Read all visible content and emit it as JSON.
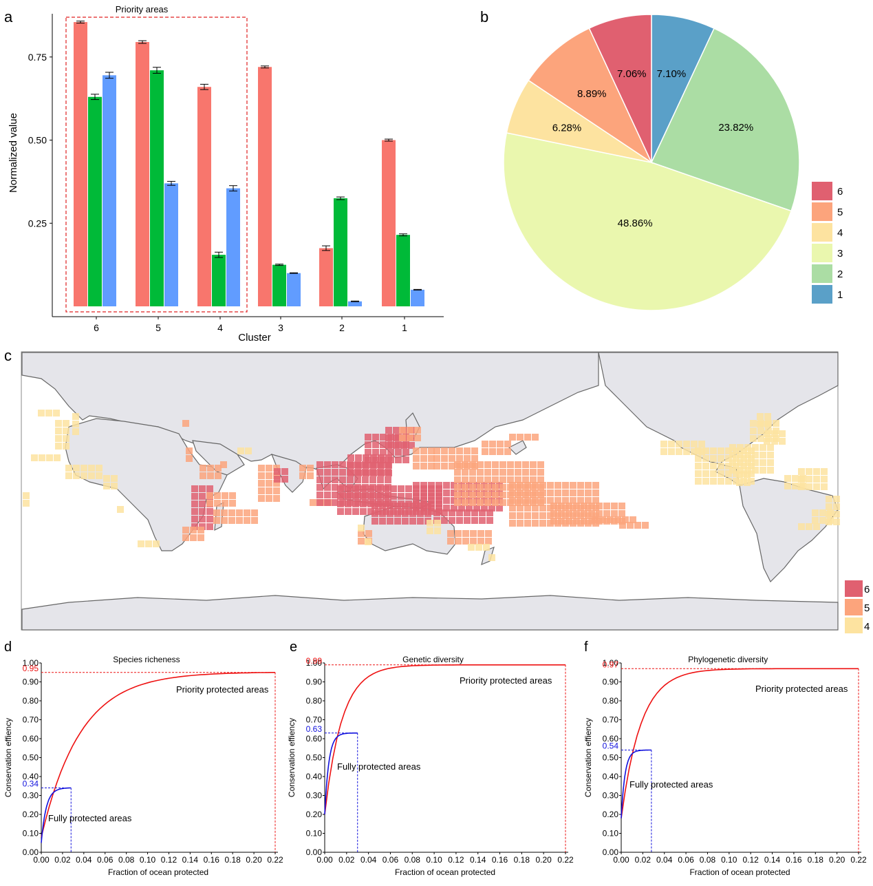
{
  "colors": {
    "series1": "#f8766d",
    "series2": "#00ba38",
    "series3": "#619cff",
    "c6": "#e06070",
    "c5": "#fca47c",
    "c4": "#fde3a0",
    "c3": "#eaf7ae",
    "c2": "#abdda4",
    "c1": "#5aa0c8",
    "red_curve": "#ee1111",
    "blue_curve": "#1111dd",
    "land": "#e5e5ea",
    "coast": "#666666"
  },
  "panel_a": {
    "letter": "a",
    "chart_data": {
      "type": "bar",
      "categories": [
        "6",
        "5",
        "4",
        "3",
        "2",
        "1"
      ],
      "series": [
        {
          "values": [
            0.855,
            0.795,
            0.66,
            0.72,
            0.175,
            0.5
          ],
          "errors": [
            0.003,
            0.004,
            0.008,
            0.003,
            0.007,
            0.003
          ]
        },
        {
          "values": [
            0.63,
            0.71,
            0.155,
            0.125,
            0.325,
            0.215
          ],
          "errors": [
            0.008,
            0.009,
            0.008,
            0.002,
            0.004,
            0.003
          ]
        },
        {
          "values": [
            0.695,
            0.37,
            0.355,
            0.1,
            0.015,
            0.05
          ],
          "errors": [
            0.009,
            0.006,
            0.008,
            0.001,
            0.001,
            0.001
          ]
        }
      ],
      "xlabel": "Cluster",
      "ylabel": "Normalized value",
      "yticks": [
        "0.25",
        "0.50",
        "0.75"
      ],
      "ylim": [
        0,
        0.88
      ],
      "annotation": "Priority areas"
    }
  },
  "panel_b": {
    "letter": "b",
    "chart_data": {
      "type": "pie",
      "slices": [
        {
          "label": "1",
          "value": 7.1,
          "text": "7.10%"
        },
        {
          "label": "2",
          "value": 23.82,
          "text": "23.82%"
        },
        {
          "label": "3",
          "value": 48.86,
          "text": "48.86%"
        },
        {
          "label": "4",
          "value": 6.28,
          "text": "6.28%"
        },
        {
          "label": "5",
          "value": 8.89,
          "text": "8.89%"
        },
        {
          "label": "6",
          "value": 7.06,
          "text": "7.06%"
        }
      ],
      "legend": [
        "6",
        "5",
        "4",
        "3",
        "2",
        "1"
      ],
      "legend_position": "right"
    }
  },
  "panel_c": {
    "letter": "c",
    "legend": [
      "6",
      "5",
      "4"
    ]
  },
  "panel_d": {
    "letter": "d",
    "chart_data": {
      "type": "line",
      "title": "Species richeness",
      "xlabel": "Fraction of ocean protected",
      "ylabel": "Conservation effiency",
      "priority_label": "Priority protected areas",
      "full_label": "Fully protected areas",
      "priority_end": {
        "x": 0.22,
        "y": 0.95,
        "label": "0.95"
      },
      "full_end": {
        "x": 0.028,
        "y": 0.34,
        "label": "0.34"
      },
      "priority_start": 0.08,
      "full_start": 0.05
    }
  },
  "panel_e": {
    "letter": "e",
    "chart_data": {
      "type": "line",
      "title": "Genetic diversity",
      "xlabel": "Fraction of ocean protected",
      "ylabel": "Conservation effiency",
      "priority_label": "Priority protected areas",
      "full_label": "Fully protected areas",
      "priority_end": {
        "x": 0.22,
        "y": 0.99,
        "label": "0.99"
      },
      "full_end": {
        "x": 0.03,
        "y": 0.63,
        "label": "0.63"
      },
      "priority_start": 0.2,
      "full_start": 0.2
    }
  },
  "panel_f": {
    "letter": "f",
    "chart_data": {
      "type": "line",
      "title": "Phylogenetic diversity",
      "xlabel": "Fraction of ocean protected",
      "ylabel": "Conservation effiency",
      "priority_label": "Priority protected areas",
      "full_label": "Fully protected areas",
      "priority_end": {
        "x": 0.22,
        "y": 0.97,
        "label": "0.97"
      },
      "full_end": {
        "x": 0.028,
        "y": 0.54,
        "label": "0.54"
      },
      "priority_start": 0.18,
      "full_start": 0.18
    }
  },
  "line_axes": {
    "yticks": [
      "0.00",
      "0.10",
      "0.20",
      "0.30",
      "0.40",
      "0.50",
      "0.60",
      "0.70",
      "0.80",
      "0.90",
      "1.00"
    ],
    "xticks": [
      "0.00",
      "0.02",
      "0.04",
      "0.06",
      "0.08",
      "0.10",
      "0.12",
      "0.14",
      "0.16",
      "0.18",
      "0.20",
      "0.22"
    ],
    "xlim": [
      0,
      0.22
    ],
    "ylim": [
      0,
      1.0
    ]
  }
}
